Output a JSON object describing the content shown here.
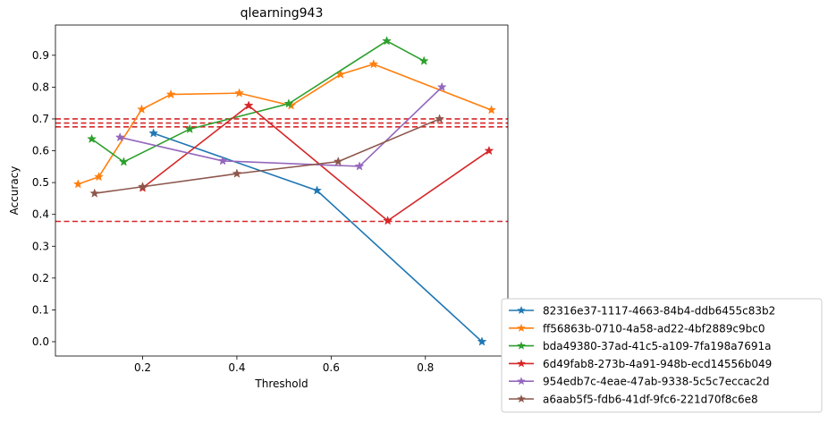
{
  "chart_data": {
    "type": "line",
    "title": "qlearning943",
    "xlabel": "Threshold",
    "ylabel": "Accuracy",
    "xlim": [
      0.015,
      0.975
    ],
    "ylim": [
      -0.045,
      0.995
    ],
    "xticks": [
      0.2,
      0.4,
      0.6,
      0.8
    ],
    "xtick_labels": [
      "0.2",
      "0.4",
      "0.6",
      "0.8"
    ],
    "yticks": [
      0.0,
      0.1,
      0.2,
      0.3,
      0.4,
      0.5,
      0.6,
      0.7,
      0.8,
      0.9
    ],
    "ytick_labels": [
      "0.0",
      "0.1",
      "0.2",
      "0.3",
      "0.4",
      "0.5",
      "0.6",
      "0.7",
      "0.8",
      "0.9"
    ],
    "grid": false,
    "legend_position": "outside-right-bottom",
    "reference_lines": {
      "color": "#d62728",
      "style": "dashed",
      "y": [
        0.7,
        0.687,
        0.675,
        0.378
      ]
    },
    "series": [
      {
        "name": "82316e37-1117-4663-84b4-ddb6455c83b2",
        "color": "#1f77b4",
        "x": [
          0.223,
          0.57,
          0.92
        ],
        "y": [
          0.655,
          0.475,
          0.0
        ]
      },
      {
        "name": "ff56863b-0710-4a58-ad22-4bf2889c9bc0",
        "color": "#ff7f0e",
        "x": [
          0.063,
          0.107,
          0.198,
          0.26,
          0.405,
          0.515,
          0.62,
          0.69,
          0.94
        ],
        "y": [
          0.495,
          0.518,
          0.73,
          0.777,
          0.781,
          0.742,
          0.84,
          0.872,
          0.728
        ]
      },
      {
        "name": "bda49380-37ad-41c5-a109-7fa198a7691a",
        "color": "#2ca02c",
        "x": [
          0.092,
          0.16,
          0.3,
          0.51,
          0.718,
          0.797
        ],
        "y": [
          0.637,
          0.565,
          0.668,
          0.748,
          0.945,
          0.882
        ]
      },
      {
        "name": "6d49fab8-273b-4a91-948b-ecd14556b049",
        "color": "#d62728",
        "x": [
          0.2,
          0.425,
          0.72,
          0.935
        ],
        "y": [
          0.483,
          0.742,
          0.38,
          0.6
        ]
      },
      {
        "name": "954edb7c-4eae-47ab-9338-5c5c7eccac2d",
        "color": "#9467bd",
        "x": [
          0.152,
          0.37,
          0.66,
          0.835
        ],
        "y": [
          0.642,
          0.568,
          0.551,
          0.8
        ]
      },
      {
        "name": "a6aab5f5-fdb6-41df-9fc6-221d70f8c6e8",
        "color": "#8c564b",
        "x": [
          0.098,
          0.2,
          0.4,
          0.615,
          0.83
        ],
        "y": [
          0.466,
          0.487,
          0.528,
          0.566,
          0.7
        ]
      }
    ]
  }
}
